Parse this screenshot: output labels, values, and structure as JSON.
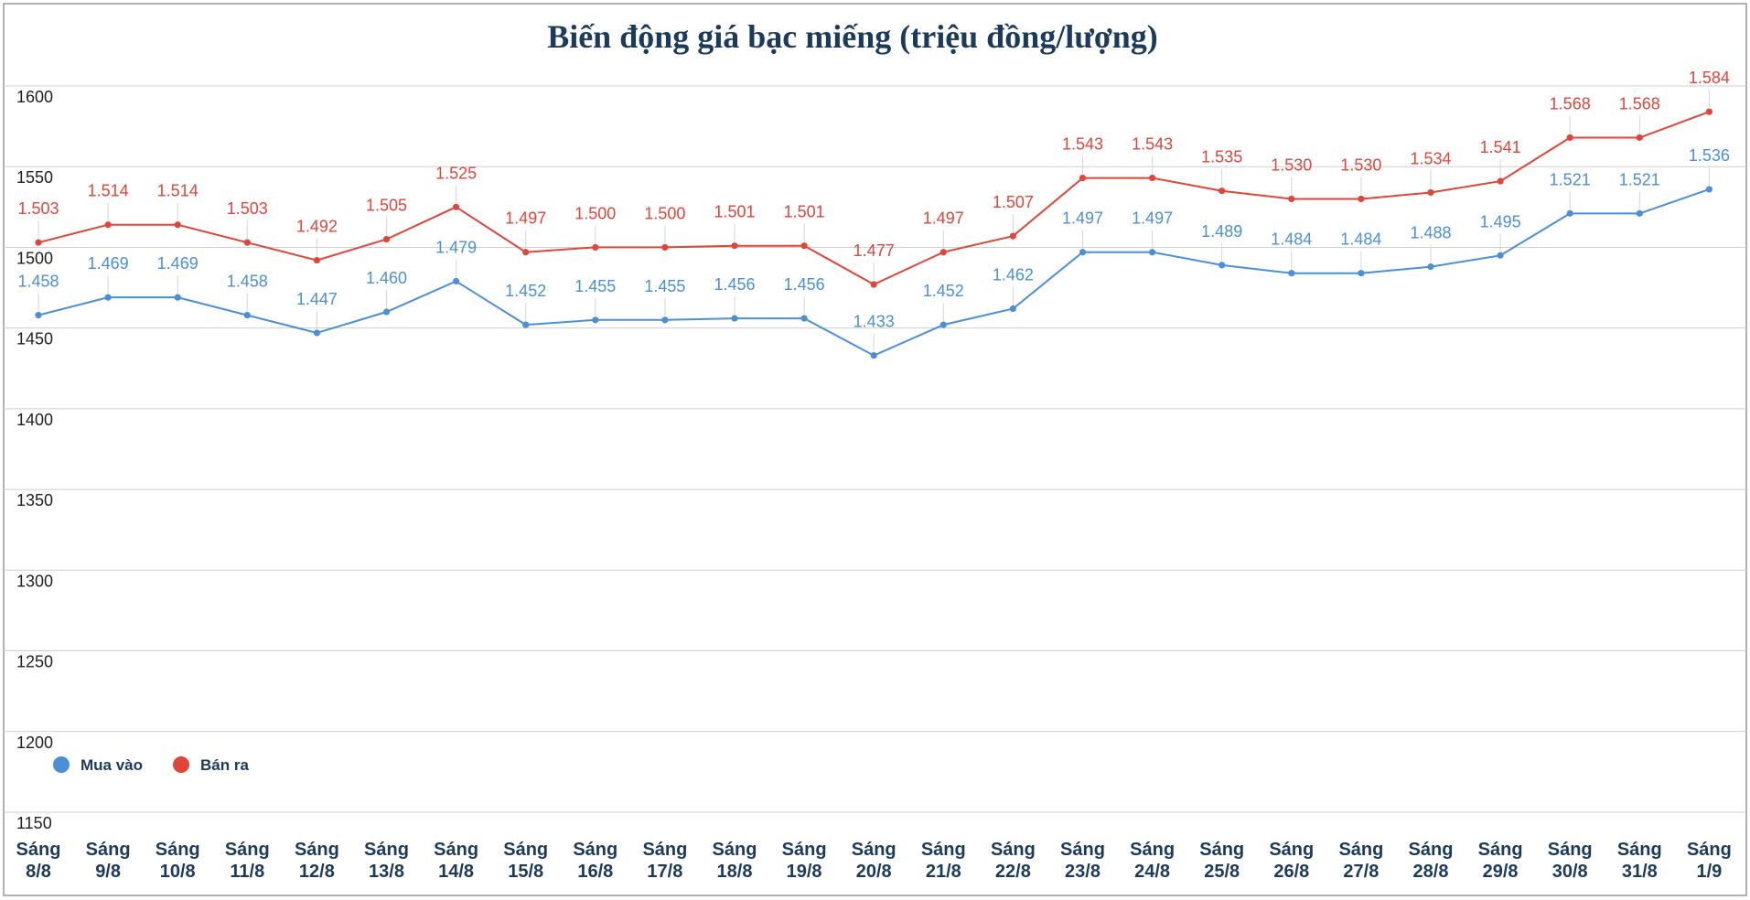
{
  "chart_data": {
    "type": "line",
    "title": "Biến động giá bạc miếng (triệu đồng/lượng)",
    "xlabel": "",
    "ylabel": "",
    "ylim": [
      1150,
      1600
    ],
    "yticks": [
      1600,
      1550,
      1500,
      1450,
      1400,
      1350,
      1300,
      1250,
      1200,
      1150
    ],
    "grid": true,
    "legend_position": "bottom-left",
    "categories": [
      [
        "Sáng",
        "8/8"
      ],
      [
        "Sáng",
        "9/8"
      ],
      [
        "Sáng",
        "10/8"
      ],
      [
        "Sáng",
        "11/8"
      ],
      [
        "Sáng",
        "12/8"
      ],
      [
        "Sáng",
        "13/8"
      ],
      [
        "Sáng",
        "14/8"
      ],
      [
        "Sáng",
        "15/8"
      ],
      [
        "Sáng",
        "16/8"
      ],
      [
        "Sáng",
        "17/8"
      ],
      [
        "Sáng",
        "18/8"
      ],
      [
        "Sáng",
        "19/8"
      ],
      [
        "Sáng",
        "20/8"
      ],
      [
        "Sáng",
        "21/8"
      ],
      [
        "Sáng",
        "22/8"
      ],
      [
        "Sáng",
        "23/8"
      ],
      [
        "Sáng",
        "24/8"
      ],
      [
        "Sáng",
        "25/8"
      ],
      [
        "Sáng",
        "26/8"
      ],
      [
        "Sáng",
        "27/8"
      ],
      [
        "Sáng",
        "28/8"
      ],
      [
        "Sáng",
        "29/8"
      ],
      [
        "Sáng",
        "30/8"
      ],
      [
        "Sáng",
        "31/8"
      ],
      [
        "Sáng",
        "1/9"
      ]
    ],
    "series": [
      {
        "name": "Mua vào",
        "color": "#4a8fd8",
        "label_color": "#4a8fd8",
        "values": [
          1458,
          1469,
          1469,
          1458,
          1447,
          1460,
          1479,
          1452,
          1455,
          1455,
          1456,
          1456,
          1433,
          1452,
          1462,
          1497,
          1497,
          1489,
          1484,
          1484,
          1488,
          1495,
          1521,
          1521,
          1536
        ],
        "labels": [
          "1.458",
          "1.469",
          "1.469",
          "1.458",
          "1.447",
          "1.460",
          "1.479",
          "1.452",
          "1.455",
          "1.455",
          "1.456",
          "1.456",
          "1.433",
          "1.452",
          "1.462",
          "1.497",
          "1.497",
          "1.489",
          "1.484",
          "1.484",
          "1.488",
          "1.495",
          "1.521",
          "1.521",
          "1.536"
        ]
      },
      {
        "name": "Bán ra",
        "color": "#e0453a",
        "label_color": "#e0453a",
        "values": [
          1503,
          1514,
          1514,
          1503,
          1492,
          1505,
          1525,
          1497,
          1500,
          1500,
          1501,
          1501,
          1477,
          1497,
          1507,
          1543,
          1543,
          1535,
          1530,
          1530,
          1534,
          1541,
          1568,
          1568,
          1584
        ],
        "labels": [
          "1.503",
          "1.514",
          "1.514",
          "1.503",
          "1.492",
          "1.505",
          "1.525",
          "1.497",
          "1.500",
          "1.500",
          "1.501",
          "1.501",
          "1.477",
          "1.497",
          "1.507",
          "1.543",
          "1.543",
          "1.535",
          "1.530",
          "1.530",
          "1.534",
          "1.541",
          "1.568",
          "1.568",
          "1.584"
        ]
      }
    ]
  }
}
